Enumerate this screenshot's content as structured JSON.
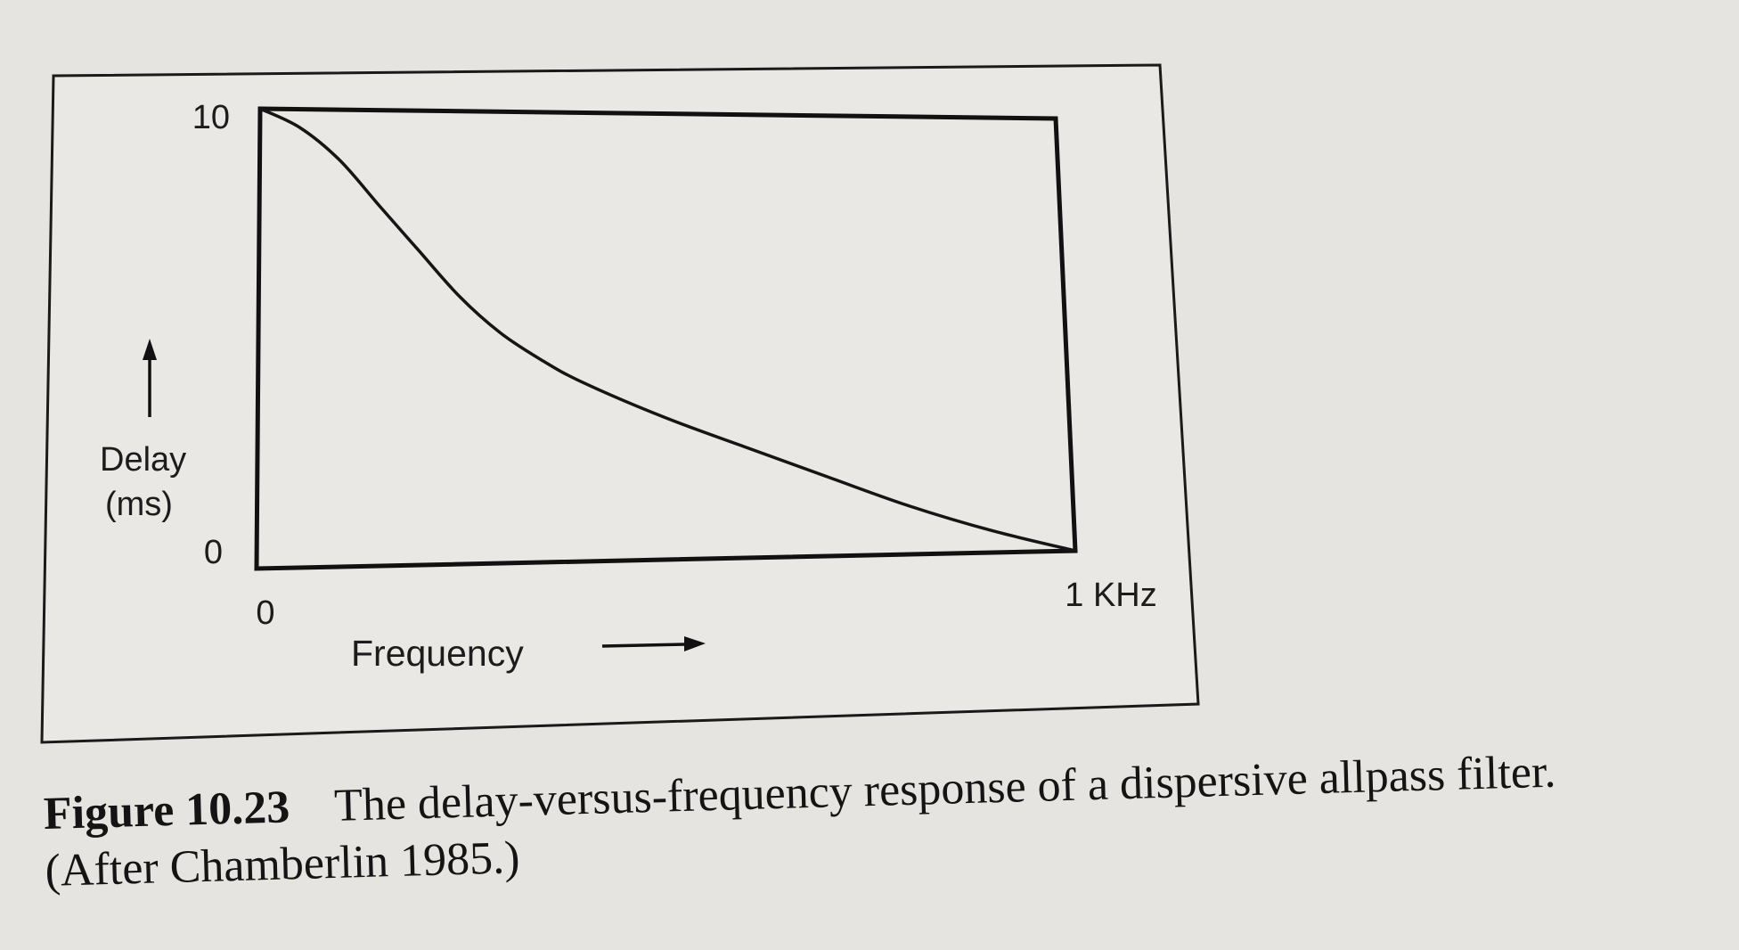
{
  "chart_data": {
    "type": "line",
    "xlabel": "Frequency",
    "ylabel": "Delay\n(ms)",
    "x_tick_labels": [
      "0",
      "1 KHz"
    ],
    "y_tick_labels": [
      "0",
      "10"
    ],
    "xlim": [
      0,
      1
    ],
    "ylim": [
      0,
      10
    ],
    "grid": false,
    "series": [
      {
        "x": [
          0,
          0.05,
          0.1,
          0.15,
          0.2,
          0.25,
          0.3,
          0.35,
          0.4,
          0.5,
          0.6,
          0.7,
          0.8,
          0.9,
          1.0
        ],
        "y": [
          10,
          9.6,
          8.9,
          7.9,
          6.9,
          5.9,
          5.1,
          4.5,
          4.0,
          3.2,
          2.5,
          1.8,
          1.1,
          0.5,
          0
        ]
      }
    ]
  },
  "caption": {
    "figure_number": "Figure 10.23",
    "text": "The delay-versus-frequency response of a dispersive allpass filter.",
    "source": "(After Chamberlin 1985.)"
  }
}
